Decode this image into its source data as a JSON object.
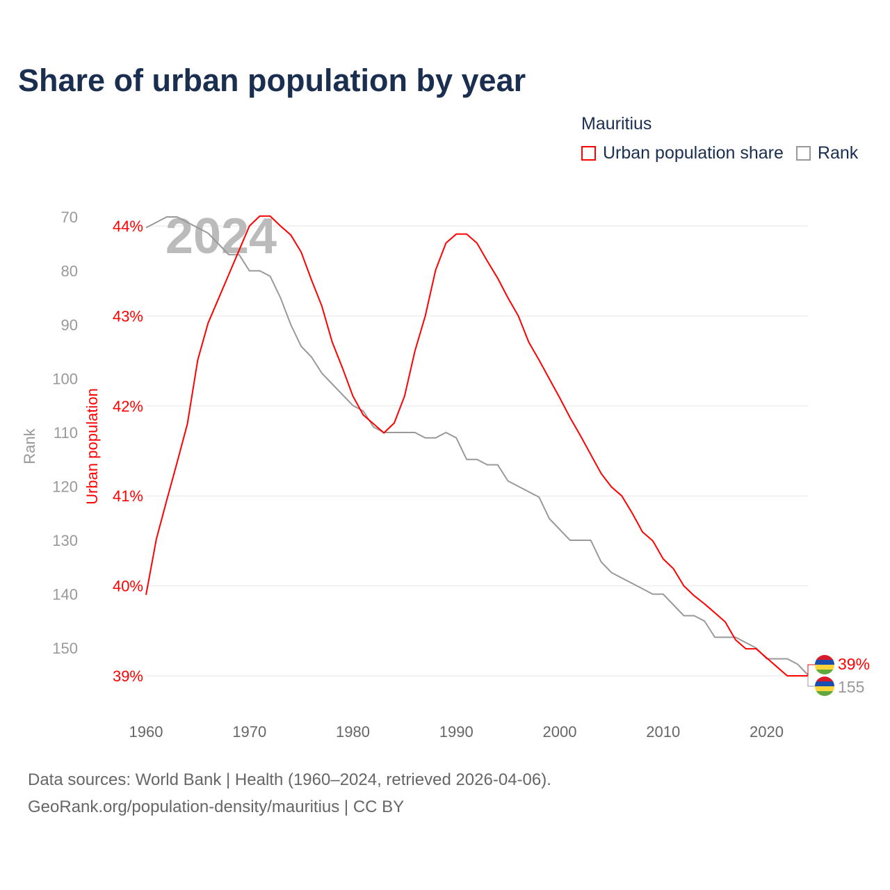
{
  "title": "Share of urban population by year",
  "legend": {
    "title": "Mauritius",
    "items": [
      {
        "label": "Urban population share",
        "color": "#ff0000"
      },
      {
        "label": "Rank",
        "color": "#999999"
      }
    ]
  },
  "sources": [
    "Data sources: World Bank | Health (1960–2024, retrieved 2026-04-06).",
    "GeoRank.org/population-density/mauritius | CC BY"
  ],
  "chart_data": {
    "type": "line",
    "title": "Share of urban population by year",
    "watermark": "2024",
    "x": [
      1960,
      1961,
      1962,
      1963,
      1964,
      1965,
      1966,
      1967,
      1968,
      1969,
      1970,
      1971,
      1972,
      1973,
      1974,
      1975,
      1976,
      1977,
      1978,
      1979,
      1980,
      1981,
      1982,
      1983,
      1984,
      1985,
      1986,
      1987,
      1988,
      1989,
      1990,
      1991,
      1992,
      1993,
      1994,
      1995,
      1996,
      1997,
      1998,
      1999,
      2000,
      2001,
      2002,
      2003,
      2004,
      2005,
      2006,
      2007,
      2008,
      2009,
      2010,
      2011,
      2012,
      2013,
      2014,
      2015,
      2016,
      2017,
      2018,
      2019,
      2020,
      2021,
      2022,
      2023,
      2024
    ],
    "series": [
      {
        "name": "Urban population share",
        "axis": "left",
        "color": "#ff0000",
        "values": [
          39.9,
          40.52,
          40.95,
          41.37,
          41.8,
          42.51,
          42.92,
          43.19,
          43.46,
          43.73,
          44.0,
          44.11,
          44.11,
          44.0,
          43.9,
          43.71,
          43.4,
          43.11,
          42.71,
          42.42,
          42.11,
          41.9,
          41.8,
          41.7,
          41.81,
          42.11,
          42.61,
          43.0,
          43.51,
          43.81,
          43.91,
          43.91,
          43.81,
          43.61,
          43.42,
          43.2,
          43.0,
          42.71,
          42.51,
          42.3,
          42.09,
          41.87,
          41.67,
          41.46,
          41.25,
          41.1,
          41.0,
          40.81,
          40.6,
          40.5,
          40.3,
          40.19,
          40.0,
          39.89,
          39.8,
          39.7,
          39.6,
          39.4,
          39.3,
          39.3,
          39.2,
          39.1,
          39.0,
          39.0,
          39.0
        ]
      },
      {
        "name": "Rank",
        "axis": "rank",
        "color": "#999999",
        "values": [
          72,
          71,
          70,
          70,
          71,
          72,
          73,
          75,
          77,
          77,
          80,
          80,
          81,
          85,
          90,
          94,
          96,
          99,
          101,
          103,
          105,
          106,
          109,
          110,
          110,
          110,
          110,
          111,
          111,
          110,
          111,
          115,
          115,
          116,
          116,
          119,
          120,
          121,
          122,
          126,
          128,
          130,
          130,
          130,
          134,
          136,
          137,
          138,
          139,
          140,
          140,
          142,
          144,
          144,
          145,
          148,
          148,
          148,
          149,
          150,
          152,
          152,
          152,
          153,
          155
        ]
      }
    ],
    "left_axis": {
      "label": "Urban population",
      "ticks": [
        "39%",
        "40%",
        "41%",
        "42%",
        "43%",
        "44%"
      ],
      "range": [
        39,
        44
      ]
    },
    "rank_axis": {
      "label": "Rank",
      "ticks": [
        "70",
        "80",
        "90",
        "100",
        "110",
        "120",
        "130",
        "140",
        "150"
      ],
      "range": [
        70,
        150
      ],
      "inverted": true
    },
    "x_ticks": [
      "1960",
      "1970",
      "1980",
      "1990",
      "2000",
      "2010",
      "2020"
    ],
    "end_labels": {
      "share": "39%",
      "rank": "155"
    },
    "flag_colors": [
      "#d91a2a",
      "#1a4fb0",
      "#ffd33a",
      "#5fa83a"
    ]
  }
}
